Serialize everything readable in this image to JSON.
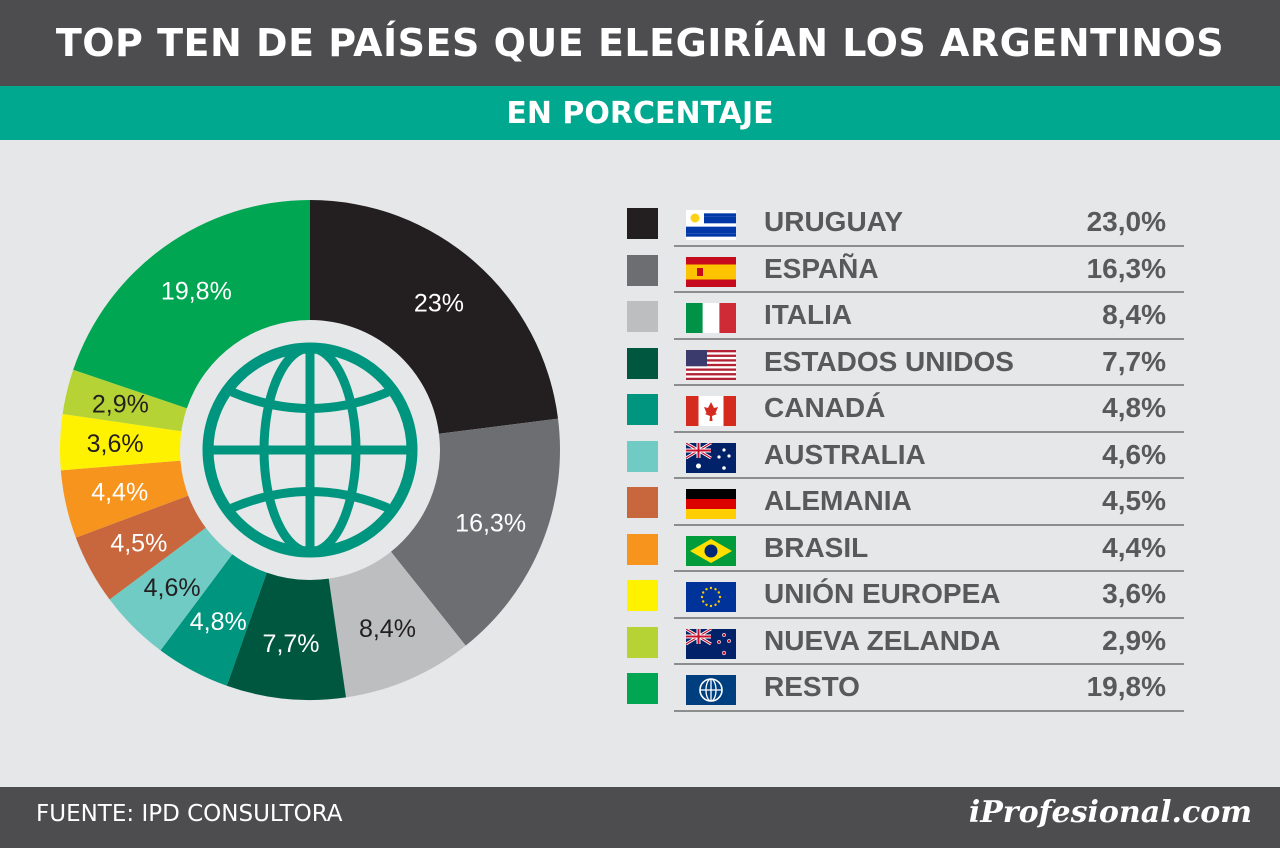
{
  "header": {
    "title": "TOP TEN DE PAÍSES QUE ELEGIRÍAN LOS ARGENTINOS",
    "subtitle": "EN PORCENTAJE"
  },
  "footer": {
    "source": "FUENTE: IPD CONSULTORA",
    "logo": "iProfesional.com"
  },
  "chart_data": {
    "type": "pie",
    "categories": [
      "URUGUAY",
      "ESPAÑA",
      "ITALIA",
      "ESTADOS UNIDOS",
      "CANADÁ",
      "AUSTRALIA",
      "ALEMANIA",
      "BRASIL",
      "UNIÓN EUROPEA",
      "NUEVA ZELANDA",
      "RESTO"
    ],
    "values": [
      23.0,
      16.3,
      8.4,
      7.7,
      4.8,
      4.6,
      4.5,
      4.4,
      3.6,
      2.9,
      19.8
    ],
    "slice_labels": [
      "23%",
      "16,3%",
      "8,4%",
      "7,7%",
      "4,8%",
      "4,6%",
      "4,5%",
      "4,4%",
      "3,6%",
      "2,9%",
      "19,8%"
    ],
    "legend_values": [
      "23,0%",
      "16,3%",
      "8,4%",
      "7,7%",
      "4,8%",
      "4,6%",
      "4,5%",
      "4,4%",
      "3,6%",
      "2,9%",
      "19,8%"
    ],
    "colors": [
      "#231f20",
      "#6d6e71",
      "#bcbec0",
      "#00573f",
      "#00957e",
      "#6fcbc3",
      "#c8673d",
      "#f7941d",
      "#fff200",
      "#b5d334",
      "#00a651"
    ],
    "label_colors": [
      "#ffffff",
      "#ffffff",
      "#231f20",
      "#ffffff",
      "#ffffff",
      "#231f20",
      "#ffffff",
      "#ffffff",
      "#231f20",
      "#231f20",
      "#ffffff"
    ],
    "flags": [
      "uruguay-flag-icon",
      "spain-flag-icon",
      "italy-flag-icon",
      "usa-flag-icon",
      "canada-flag-icon",
      "australia-flag-icon",
      "germany-flag-icon",
      "brazil-flag-icon",
      "eu-flag-icon",
      "new-zealand-flag-icon",
      "globe-icon"
    ],
    "center_icon": "globe-icon",
    "legend_position": "right"
  }
}
